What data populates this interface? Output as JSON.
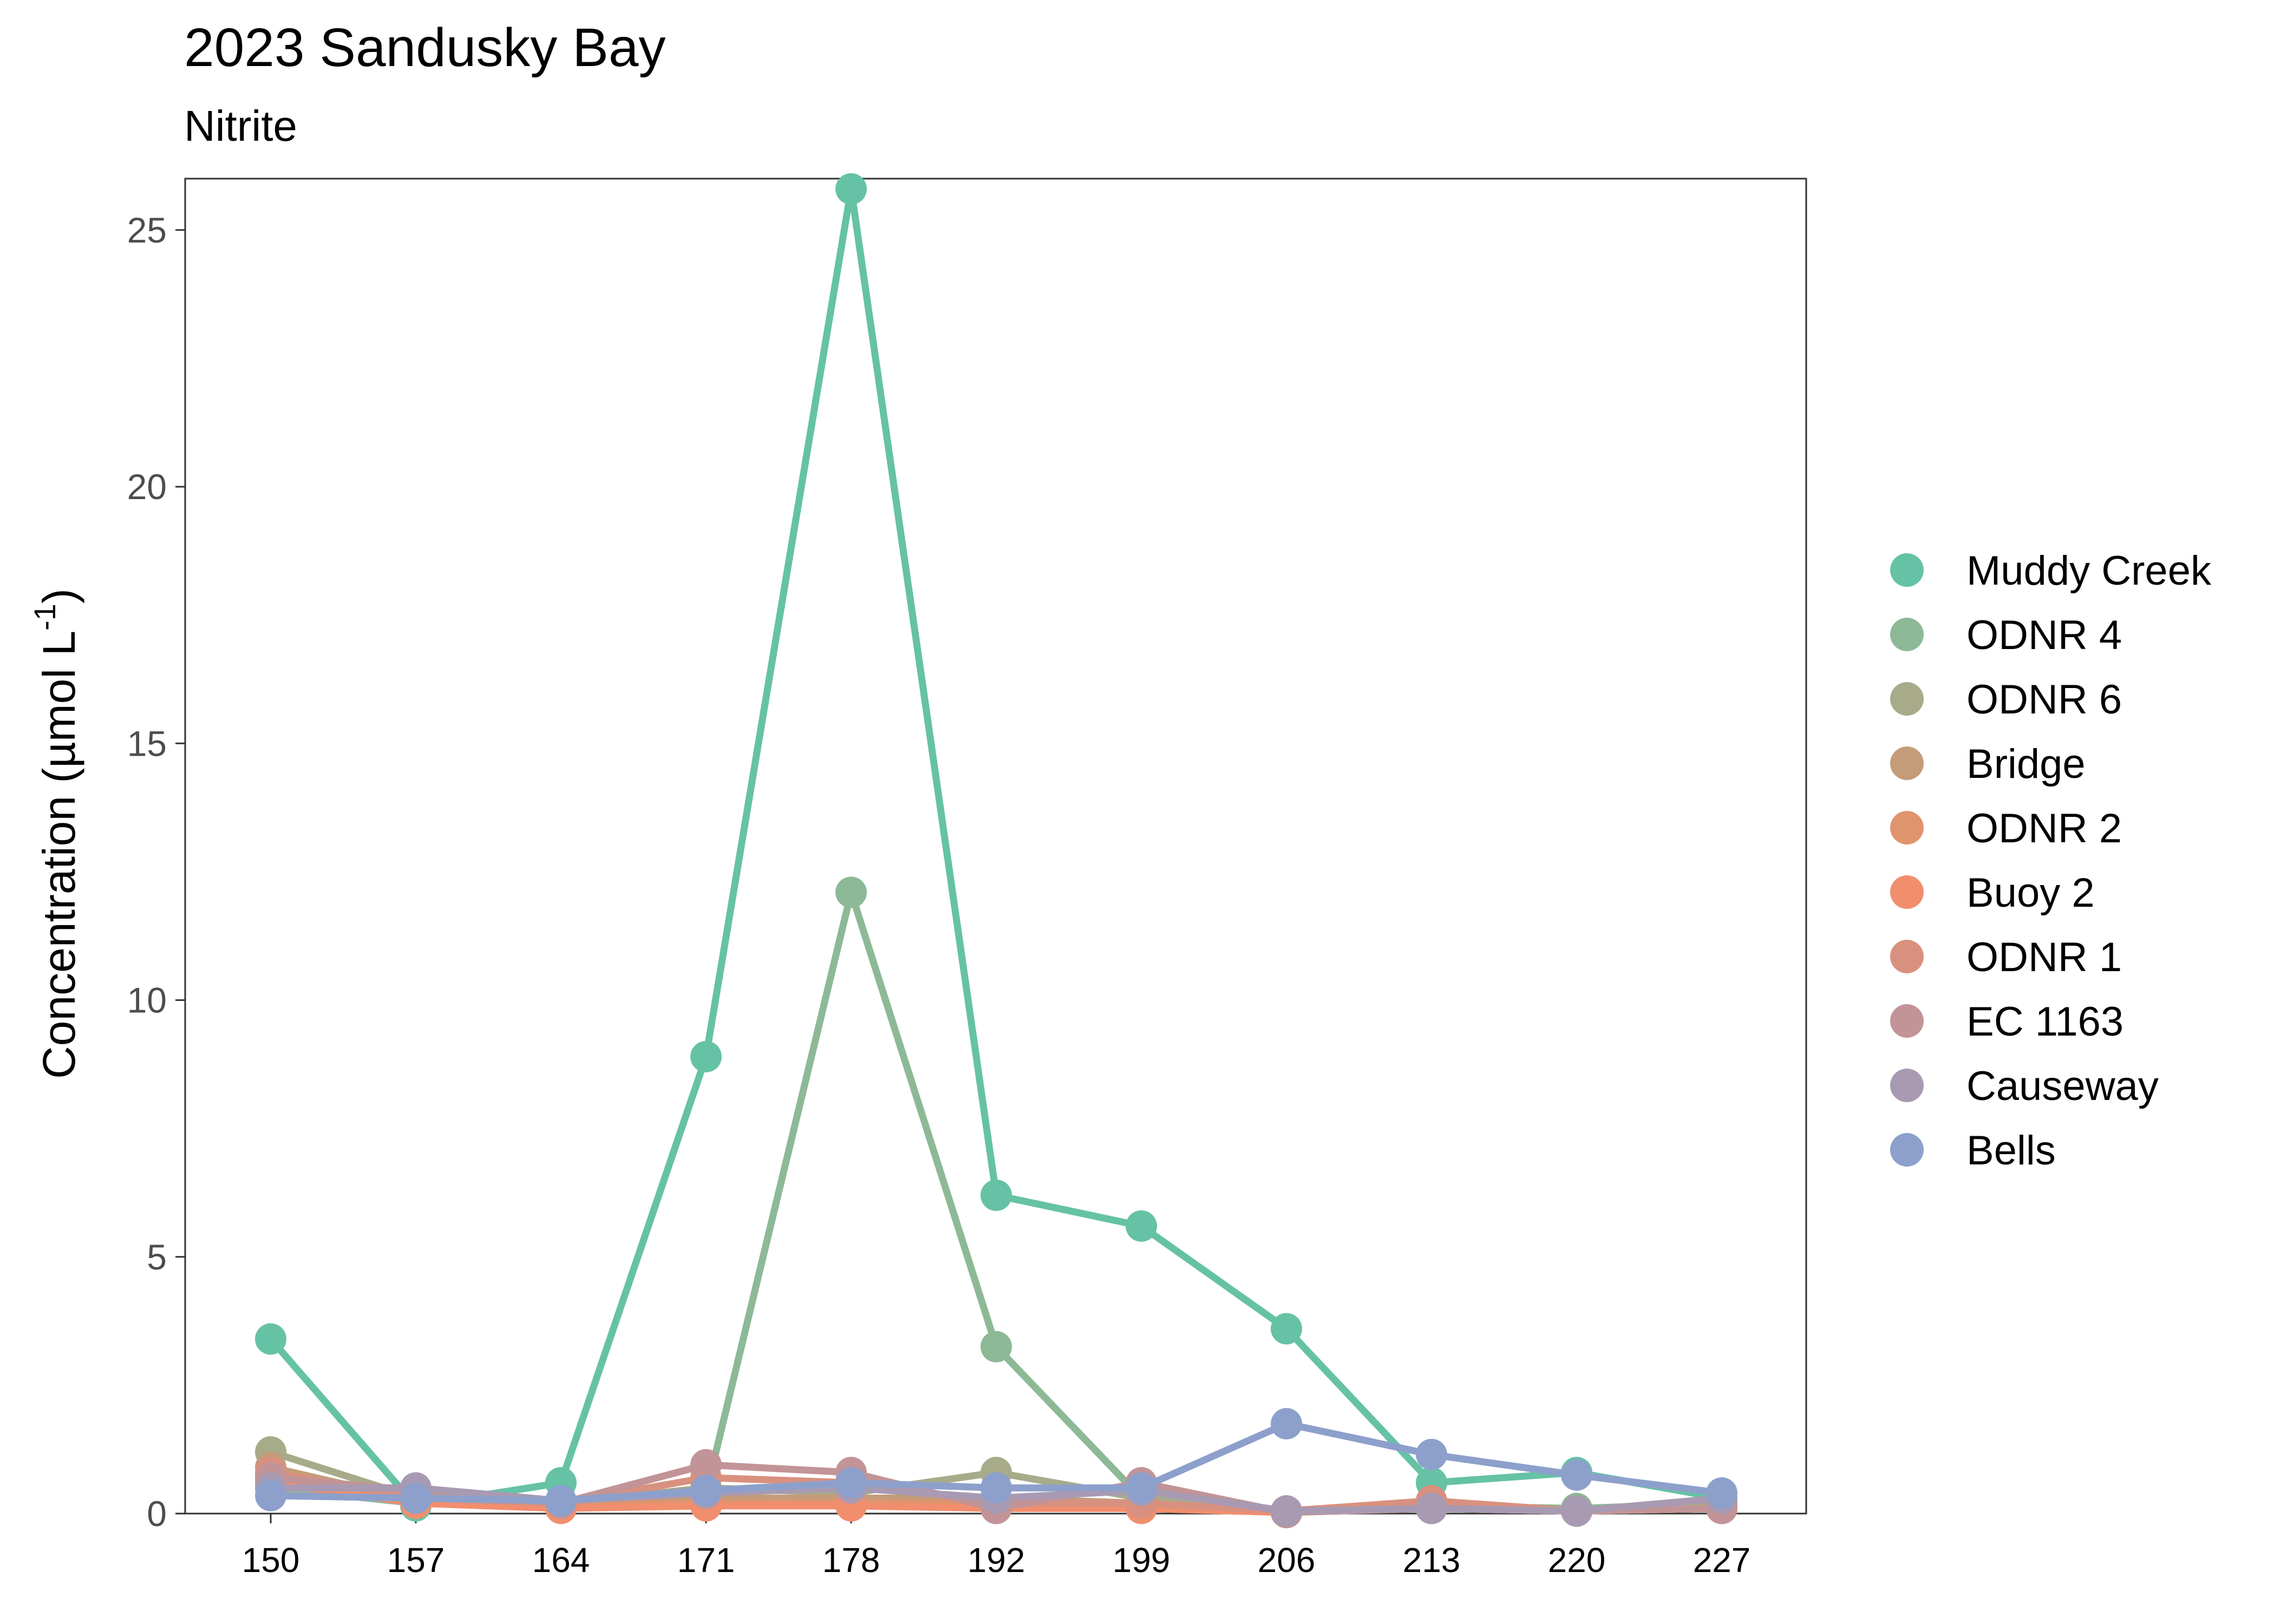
{
  "chart_data": {
    "type": "line",
    "title": "2023 Sandusky Bay",
    "subtitle": "Nitrite",
    "xlabel": "",
    "ylabel_main": "Concentration (µmol L",
    "ylabel_sup": "-1",
    "ylabel_close": ")",
    "x": [
      150,
      157,
      164,
      171,
      178,
      192,
      199,
      206,
      213,
      220,
      227
    ],
    "x_tick_labels": [
      "150",
      "157",
      "164",
      "171",
      "178",
      "192",
      "199",
      "206",
      "213",
      "220",
      "227"
    ],
    "y_ticks": [
      0,
      5,
      10,
      15,
      20,
      25
    ],
    "y_tick_labels": [
      "0",
      "5",
      "10",
      "15",
      "20",
      "25"
    ],
    "ylim": [
      0,
      26
    ],
    "grid": false,
    "legend_position": "right",
    "series": [
      {
        "name": "Muddy Creek",
        "color": "#66C2A5",
        "values": [
          3.4,
          0.15,
          0.6,
          8.9,
          25.8,
          6.2,
          5.6,
          3.6,
          0.6,
          0.8,
          0.3
        ]
      },
      {
        "name": "ODNR 4",
        "color": "#8DB996",
        "values": [
          0.5,
          0.2,
          0.2,
          0.4,
          12.1,
          3.25,
          0.3,
          0.05,
          0.15,
          0.1,
          0.2
        ]
      },
      {
        "name": "ODNR 6",
        "color": "#A8AB8A",
        "values": [
          1.2,
          0.3,
          0.2,
          0.5,
          0.4,
          0.8,
          0.3,
          0.05,
          0.1,
          0.05,
          0.15
        ]
      },
      {
        "name": "Bridge",
        "color": "#C49C7A",
        "values": [
          0.9,
          0.25,
          0.2,
          0.3,
          0.3,
          0.3,
          0.2,
          0.05,
          0.1,
          0.05,
          0.1
        ]
      },
      {
        "name": "ODNR 2",
        "color": "#E0946E",
        "values": [
          0.7,
          0.2,
          0.15,
          0.2,
          0.2,
          0.2,
          0.15,
          0.05,
          0.1,
          0.05,
          0.1
        ]
      },
      {
        "name": "Buoy 2",
        "color": "#F18E6E",
        "values": [
          0.6,
          0.2,
          0.1,
          0.15,
          0.15,
          0.1,
          0.1,
          0.02,
          0.15,
          0.05,
          0.1
        ]
      },
      {
        "name": "ODNR 1",
        "color": "#D9917F",
        "values": [
          0.8,
          0.3,
          0.2,
          0.7,
          0.6,
          0.2,
          0.2,
          0.05,
          0.25,
          0.05,
          0.1
        ]
      },
      {
        "name": "EC 1163",
        "color": "#C29497",
        "values": [
          0.7,
          0.45,
          0.2,
          0.95,
          0.8,
          0.1,
          0.6,
          0.02,
          0.1,
          0.05,
          0.1
        ]
      },
      {
        "name": "Causeway",
        "color": "#A89AB2",
        "values": [
          0.5,
          0.5,
          0.25,
          0.4,
          0.5,
          0.3,
          0.45,
          0.05,
          0.1,
          0.05,
          0.3
        ]
      },
      {
        "name": "Bells",
        "color": "#8DA0CB",
        "values": [
          0.35,
          0.3,
          0.25,
          0.45,
          0.6,
          0.5,
          0.5,
          1.75,
          1.15,
          0.75,
          0.4
        ]
      }
    ]
  }
}
